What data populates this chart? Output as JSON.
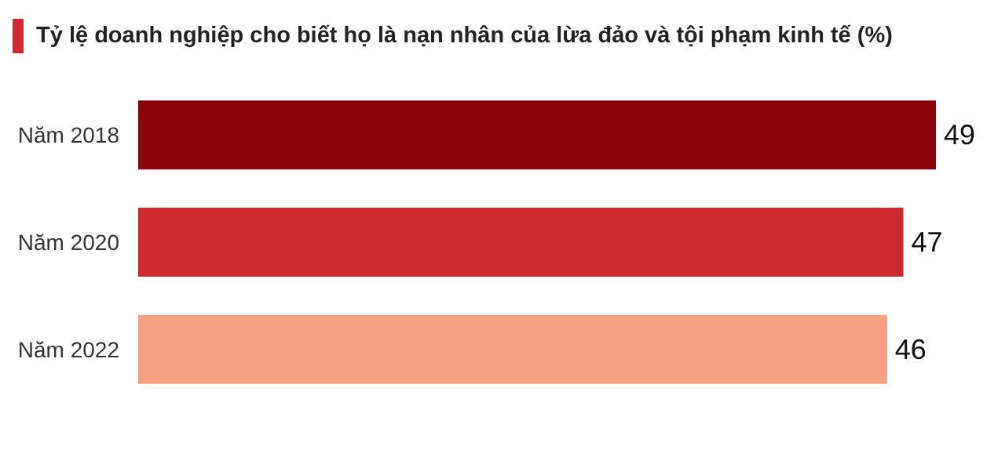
{
  "chart_data": {
    "type": "bar",
    "orientation": "horizontal",
    "title": "Tỷ lệ doanh nghiệp cho biết họ là nạn nhân của lừa đảo và tội phạm kinh tế (%)",
    "categories": [
      "Năm 2018",
      "Năm 2020",
      "Năm 2022"
    ],
    "values": [
      49,
      47,
      46
    ],
    "colors": [
      "#8b0508",
      "#d02a31",
      "#f5a083"
    ],
    "data_labels": true
  }
}
